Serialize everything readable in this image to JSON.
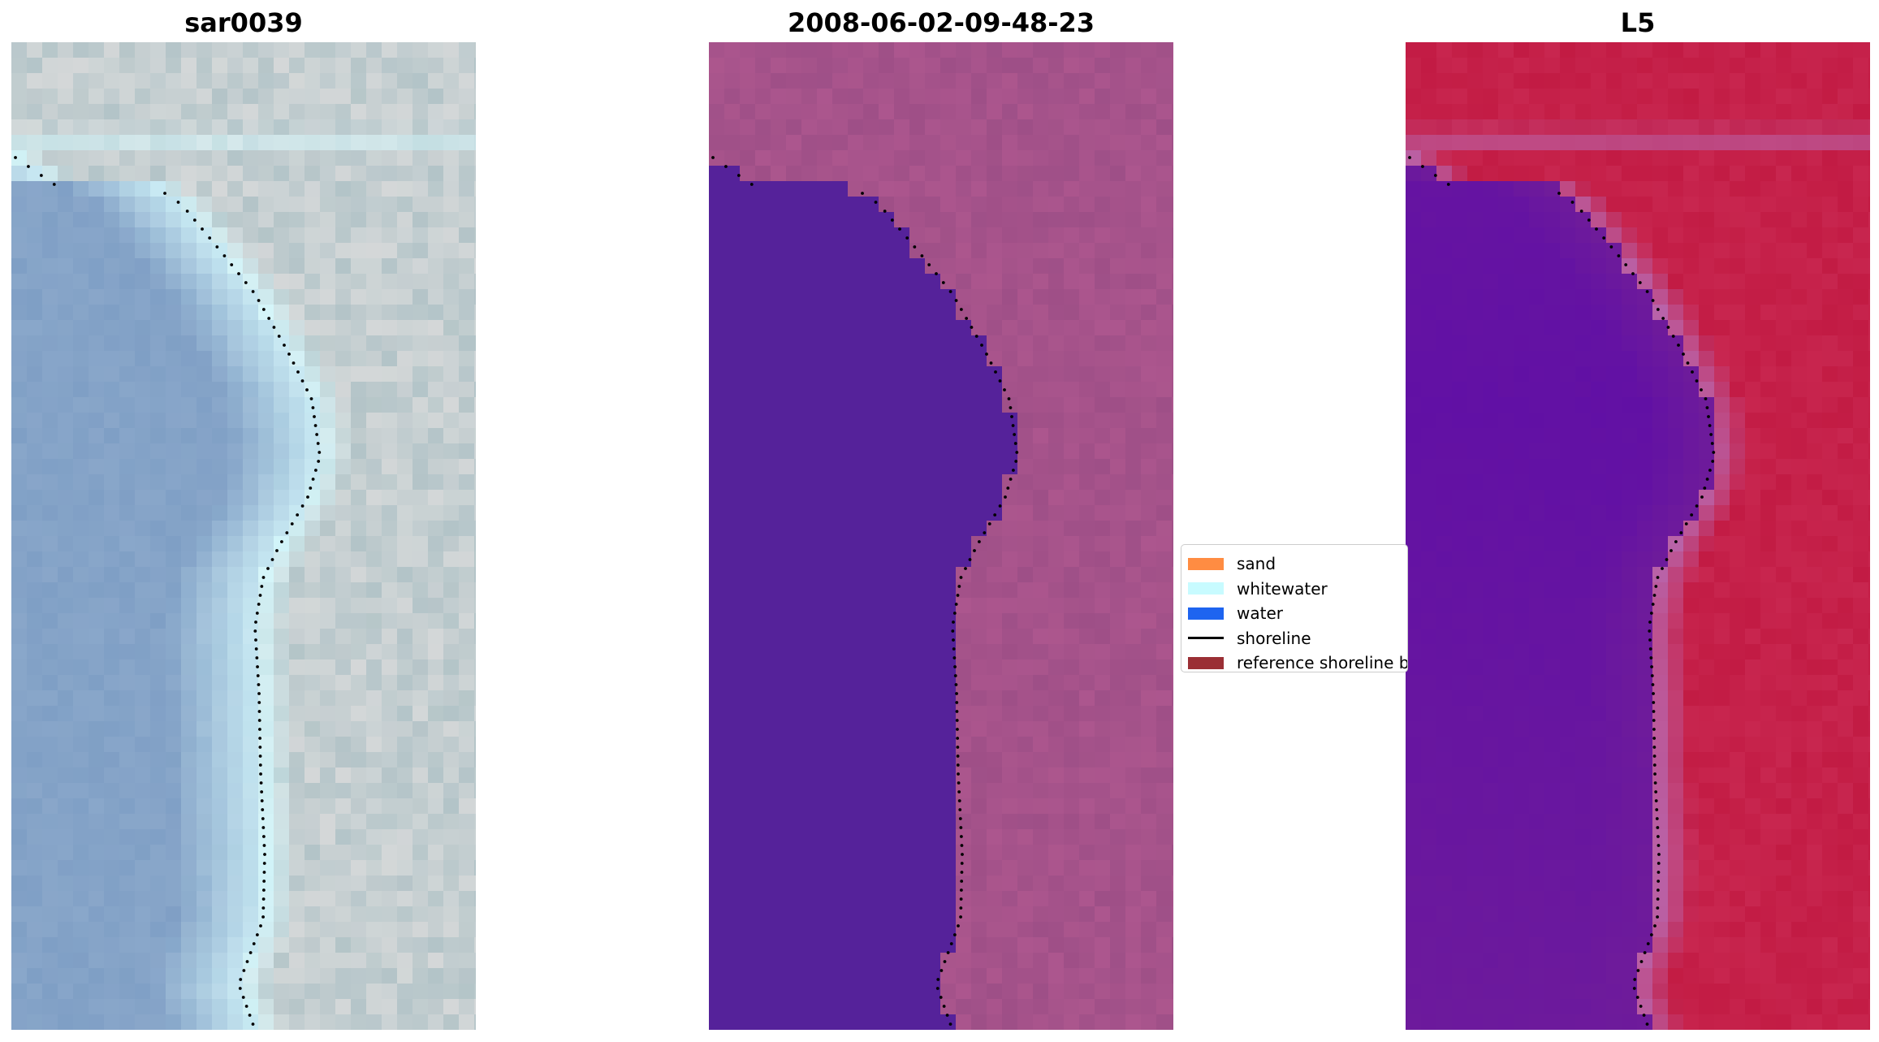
{
  "panels": [
    {
      "title": "sar0039",
      "variant": "rgb"
    },
    {
      "title": "2008-06-02-09-48-23",
      "variant": "classification"
    },
    {
      "title": "L5",
      "variant": "index"
    }
  ],
  "legend": {
    "items": [
      {
        "label": "sand",
        "color": "#ff8c42",
        "kind": "patch"
      },
      {
        "label": "whitewater",
        "color": "#c8fbff",
        "kind": "patch"
      },
      {
        "label": "water",
        "color": "#1e64f0",
        "kind": "patch"
      },
      {
        "label": "shoreline",
        "color": "#000000",
        "kind": "line"
      },
      {
        "label": "reference shoreline buffer",
        "color": "#9b2f35",
        "kind": "patch"
      }
    ]
  },
  "colors": {
    "water_class": "#55229a",
    "land_class": "#9e4f87",
    "rgb_water": "#7f9fc5",
    "rgb_land": "#b3c4c8",
    "index_water": "#6f1c9a",
    "index_land": "#c8264f"
  }
}
